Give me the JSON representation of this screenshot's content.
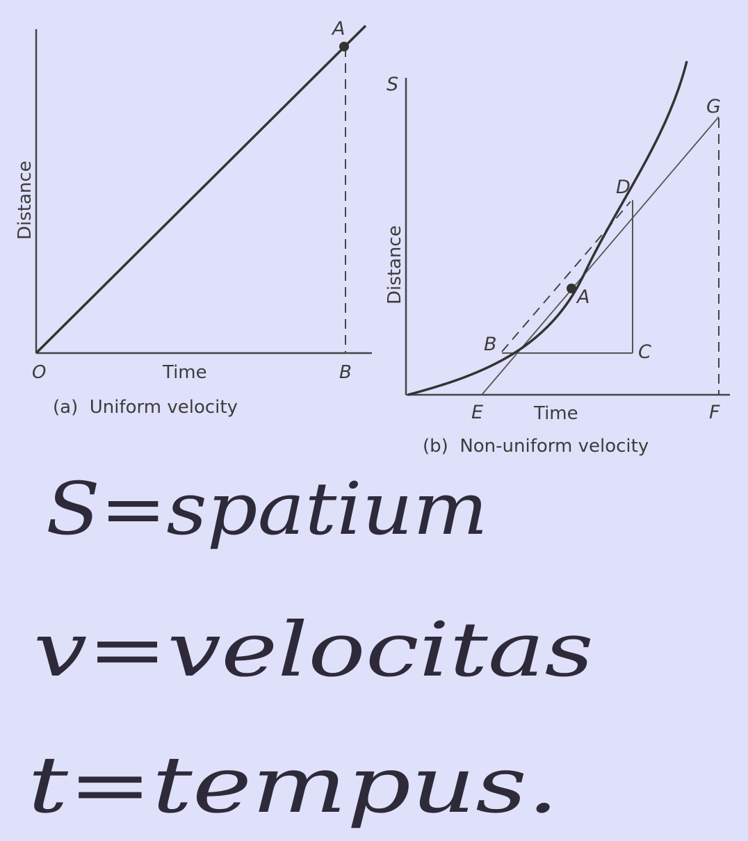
{
  "panel_a": {
    "y_axis_label": "Distance",
    "x_axis_label": "Time",
    "caption": "(a)  Uniform velocity",
    "points": {
      "origin": "O",
      "A": "A",
      "B": "B"
    }
  },
  "panel_b": {
    "s_label": "S",
    "y_axis_label": "Distance",
    "x_axis_label": "Time",
    "caption": "(b)  Non-uniform velocity",
    "points": {
      "A": "A",
      "B": "B",
      "C": "C",
      "D": "D",
      "E": "E",
      "F": "F",
      "G": "G"
    }
  },
  "handwritten": {
    "line1": "S=spatium",
    "line2": "v=velocitas",
    "line3": "t=tempus."
  },
  "colors": {
    "background": "#dfe1fb",
    "ink": "#3c3c3c",
    "handwriting": "#2e2a3a"
  }
}
